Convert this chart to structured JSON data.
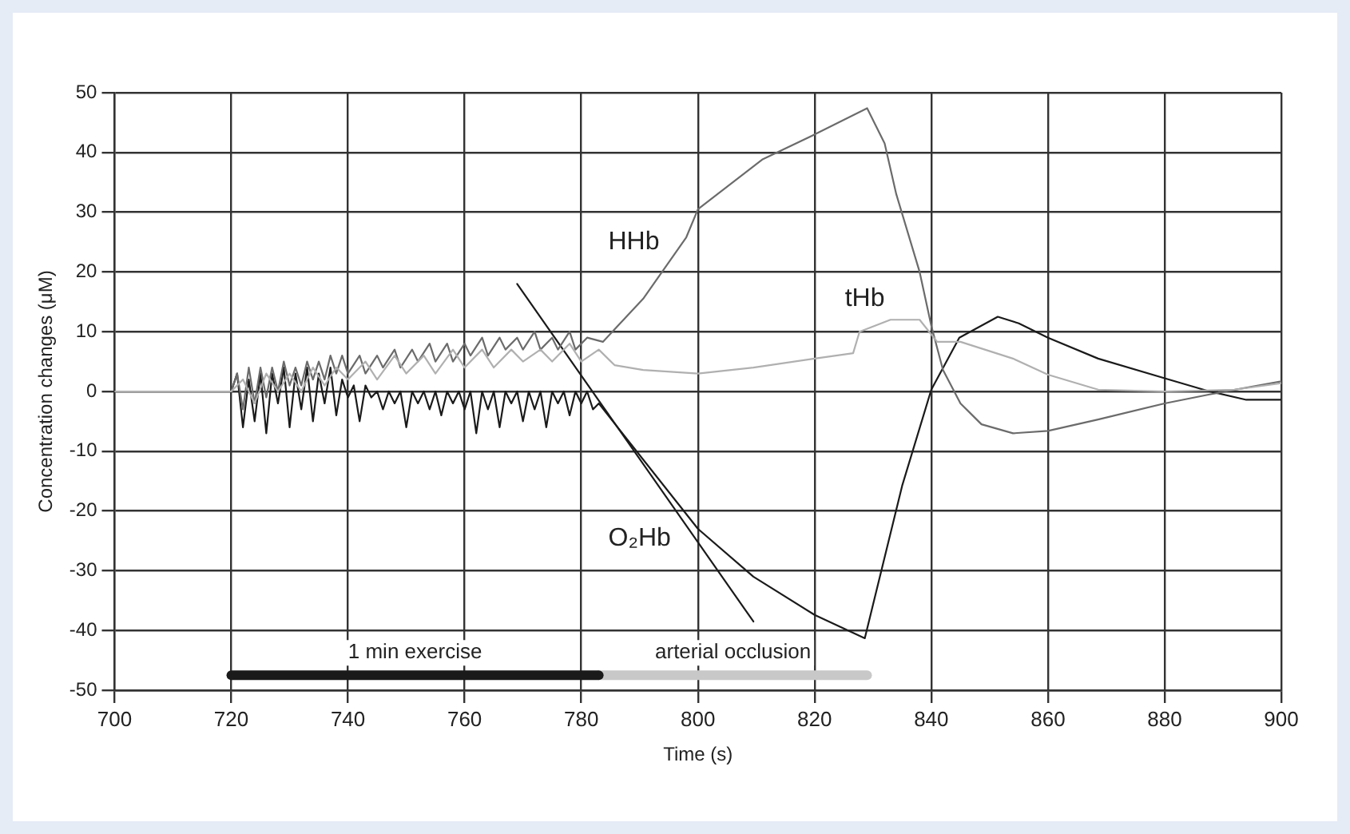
{
  "chart_data": {
    "type": "line",
    "xlabel": "Time (s)",
    "ylabel": "Concentration changes (μM)",
    "xlim": [
      700,
      900
    ],
    "xticks": [
      700,
      720,
      740,
      760,
      780,
      800,
      820,
      840,
      860,
      880,
      900
    ],
    "ylim": [
      -50,
      50
    ],
    "yticks": [
      -50,
      -40,
      -30,
      -20,
      -10,
      0,
      10,
      20,
      30,
      40,
      50
    ],
    "grid": true,
    "legend": false,
    "marker": "none",
    "line_style": "solid",
    "series": [
      {
        "name": "tHb",
        "color": "#b0b0b0",
        "x": [
          700,
          710,
          720,
          722,
          724,
          726,
          728,
          730,
          732,
          734,
          736,
          738,
          740,
          743,
          745,
          748,
          750,
          753,
          755,
          758,
          760,
          763,
          765,
          768,
          770,
          773,
          775,
          778,
          780,
          783,
          785.7,
          790.6,
          800,
          809.5,
          820,
          826.6,
          827.7,
          833,
          838,
          841,
          845,
          854,
          860,
          868.6,
          880,
          892,
          900
        ],
        "values": [
          0,
          0,
          0,
          2,
          -2,
          3,
          0,
          3,
          0,
          4,
          1,
          4,
          2,
          5,
          2,
          6,
          3,
          6,
          3,
          7,
          4,
          7,
          4,
          7,
          5,
          7,
          5,
          8,
          5,
          7,
          4.4,
          3.6,
          3,
          4,
          5.5,
          6.4,
          10,
          12,
          12,
          8.3,
          8.3,
          5.5,
          2.8,
          0.3,
          0,
          0.3,
          1.4
        ]
      },
      {
        "name": "HHb",
        "color": "#6b6b6b",
        "x": [
          700,
          710,
          720,
          721,
          722,
          723,
          724,
          725,
          726,
          727,
          728,
          729,
          730,
          731,
          732,
          733,
          734,
          735,
          736,
          737,
          738,
          739,
          740,
          742,
          743,
          745,
          746,
          748,
          749,
          751,
          752,
          754,
          755,
          757,
          758,
          760,
          761,
          763,
          764,
          766,
          767,
          769,
          770,
          772,
          773,
          775,
          776,
          778,
          779,
          781,
          783.7,
          790.6,
          798,
          800,
          811,
          820,
          829,
          832,
          834,
          838,
          840,
          842,
          845,
          848.6,
          854,
          860,
          868.6,
          880,
          887.7,
          900
        ],
        "values": [
          0,
          0,
          0,
          3,
          -3,
          4,
          -2,
          4,
          -1,
          4,
          0,
          5,
          1,
          4,
          1,
          5,
          2,
          5,
          2,
          6,
          3,
          6,
          3,
          6,
          3,
          6,
          4,
          7,
          4,
          7,
          5,
          8,
          5,
          8,
          5,
          8,
          6,
          9,
          6,
          9,
          7,
          9,
          7,
          10,
          7,
          9,
          7,
          10,
          7,
          9,
          8.3,
          15.5,
          25.8,
          30.5,
          38.8,
          43,
          47.4,
          41.5,
          33,
          20,
          11,
          3.6,
          -2,
          -5.5,
          -7,
          -6.6,
          -4.7,
          -2,
          -0.5,
          1.7
        ]
      },
      {
        "name": "O₂Hb",
        "color": "#1a1a1a",
        "x": [
          700,
          710,
          719,
          720,
          721,
          722,
          723,
          724,
          725,
          726,
          727,
          728,
          729,
          730,
          731,
          732,
          733,
          734,
          735,
          736,
          737,
          738,
          739,
          740,
          741,
          742,
          743,
          744,
          745,
          746,
          747,
          748,
          749,
          750,
          751,
          752,
          753,
          754,
          755,
          756,
          757,
          758,
          759,
          760,
          761,
          762,
          763,
          764,
          765,
          766,
          767,
          768,
          769,
          770,
          771,
          772,
          773,
          774,
          775,
          776,
          777,
          778,
          779,
          780,
          781,
          782,
          783,
          800,
          809.5,
          820,
          828.6,
          835,
          840,
          844.8,
          851.4,
          855,
          860,
          868.6,
          880,
          887.7,
          894,
          900
        ],
        "values": [
          0,
          0,
          0,
          0,
          3,
          -6,
          2,
          -5,
          3,
          -7,
          3,
          -2,
          4,
          -6,
          3,
          -3,
          4,
          -5,
          3,
          -2,
          4,
          -4,
          2,
          -1,
          1,
          -5,
          1,
          -1,
          0,
          -3,
          0,
          -2,
          0,
          -6,
          0,
          -2,
          0,
          -3,
          0,
          -4,
          0,
          -2,
          0,
          -3,
          0,
          -7,
          0,
          -3,
          0,
          -6,
          0,
          -2,
          0,
          -5,
          0,
          -3,
          0,
          -6,
          0,
          -2,
          0,
          -4,
          0,
          -2,
          0,
          -3,
          -2,
          -23,
          -31,
          -37.4,
          -41.3,
          -15.8,
          0.3,
          9,
          12.5,
          11.4,
          9,
          5.5,
          2.2,
          0,
          -1.4,
          -1.4
        ]
      },
      {
        "color": "#1a1a1a",
        "x": [
          769,
          809.5
        ],
        "values": [
          18,
          -38.5
        ]
      },
      {
        "name": "1 min exercise",
        "color": "#1a1a1a",
        "x": [
          720,
          783
        ],
        "values": [
          -47.5,
          -47.5
        ]
      },
      {
        "name": "arterial occlusion",
        "color": "#c8c8c8",
        "x": [
          783,
          829
        ],
        "values": [
          -47.5,
          -47.5
        ]
      }
    ]
  }
}
